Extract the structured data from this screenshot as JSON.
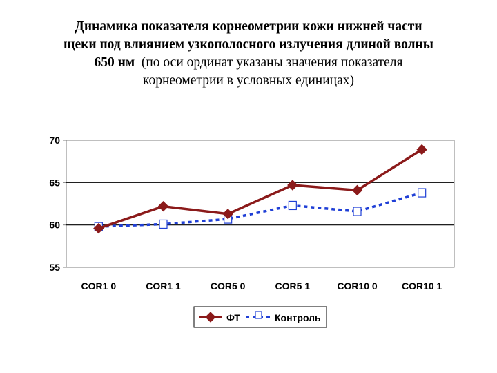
{
  "title": {
    "line1": "Динамика показателя корнеометрии  кожи нижней  части",
    "line2": "щеки   под влиянием узкополосного  излучения длиной волны",
    "line3_bold": "650 нм",
    "line3_rest": "(по оси ординат указаны значения  показателя",
    "line4": "корнеометрии в условных единицах)"
  },
  "chart_data": {
    "type": "line",
    "categories": [
      "COR1 0",
      "COR1 1",
      "COR5 0",
      "COR5 1",
      "COR10 0",
      "COR10 1"
    ],
    "series": [
      {
        "name": "ФТ",
        "values": [
          59.6,
          62.2,
          61.3,
          64.7,
          64.1,
          68.9
        ],
        "color": "#8b1a1a",
        "marker": "diamond",
        "line": "solid"
      },
      {
        "name": "Контроль",
        "values": [
          59.8,
          60.1,
          60.7,
          62.3,
          61.6,
          63.8
        ],
        "color": "#1f3fd6",
        "marker": "open-square",
        "line": "dashed"
      }
    ],
    "ylim": [
      55,
      70
    ],
    "yticks": [
      55,
      60,
      65,
      70
    ],
    "grid": true,
    "legend": "bottom"
  }
}
